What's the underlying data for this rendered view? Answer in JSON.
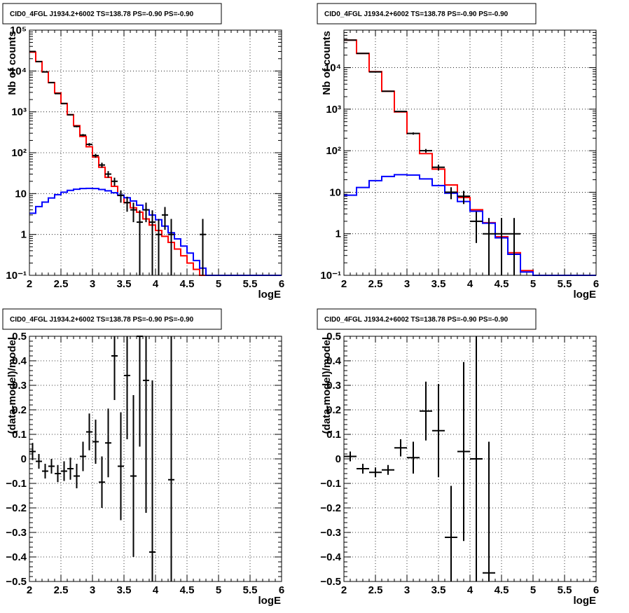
{
  "chart_data": [
    {
      "id": "p1",
      "type": "line",
      "title": "CID0_4FGL J1934.2+6002 TS=138.78 PS=-0.90 PS=-0.90",
      "xlabel": "logE",
      "ylabel": "Nb of counts",
      "xlim": [
        2,
        6
      ],
      "ylim": [
        0.1,
        100000
      ],
      "log_y": true,
      "grid": true,
      "xticks": [
        2,
        2.5,
        3,
        3.5,
        4,
        4.5,
        5,
        5.5,
        6
      ],
      "xtick_labels": [
        "2",
        "2.5",
        "3",
        "3.5",
        "4",
        "4.5",
        "5",
        "5.5",
        "6"
      ],
      "yticks": [
        0.1,
        1,
        10,
        100,
        1000,
        10000,
        100000
      ],
      "ytick_labels": [
        "10⁻¹",
        "1",
        "10",
        "10²",
        "10³",
        "10⁴",
        "10⁵"
      ],
      "bin_edges": [
        2.0,
        2.1,
        2.2,
        2.3,
        2.4,
        2.5,
        2.6,
        2.7,
        2.8,
        2.9,
        3.0,
        3.1,
        3.2,
        3.3,
        3.4,
        3.5,
        3.6,
        3.7,
        3.8,
        3.9,
        4.0,
        4.1,
        4.2,
        4.3,
        4.4,
        4.5,
        4.6,
        4.7,
        4.8,
        4.9,
        5.0,
        5.1,
        5.2,
        5.3,
        5.4,
        5.5,
        5.6,
        5.7,
        5.8,
        5.9,
        6.0
      ],
      "series": [
        {
          "color": "#ff0000",
          "values": [
            29000,
            17000,
            9500,
            5200,
            2900,
            1600,
            850,
            460,
            250,
            140,
            78,
            44,
            25,
            15,
            9,
            6,
            4.5,
            3.5,
            2.4,
            1.7,
            1.25,
            0.9,
            0.64,
            0.44,
            0.3,
            0.2,
            0.14,
            0.1,
            0.1,
            0.1,
            0.1,
            0.1,
            0.1,
            0.1,
            0.1,
            0.1,
            0.1,
            0.1,
            0.1,
            0.1
          ]
        },
        {
          "color": "#0000ff",
          "values": [
            3.3,
            4.8,
            6.2,
            7.8,
            9.4,
            10.8,
            12,
            12.8,
            13.3,
            13.4,
            13.3,
            12.6,
            11.7,
            10.5,
            9.2,
            7.9,
            6.6,
            5.2,
            4.0,
            3.0,
            2.3,
            1.6,
            1.1,
            0.78,
            0.52,
            0.35,
            0.23,
            0.15,
            0.1,
            0.1,
            0.1,
            0.1,
            0.1,
            0.1,
            0.1,
            0.1,
            0.1,
            0.1,
            0.1,
            0.1
          ]
        }
      ],
      "data_points": {
        "x": [
          2.05,
          2.15,
          2.25,
          2.35,
          2.45,
          2.55,
          2.65,
          2.75,
          2.85,
          2.95,
          3.05,
          3.15,
          3.25,
          3.35,
          3.45,
          3.55,
          3.65,
          3.75,
          3.85,
          3.95,
          4.05,
          4.15,
          4.25,
          4.75
        ],
        "y": [
          30000,
          17000,
          9500,
          5200,
          2800,
          1600,
          850,
          440,
          270,
          160,
          85,
          50,
          30,
          20,
          9,
          6,
          4,
          2,
          4,
          2,
          1,
          3,
          1,
          1
        ],
        "yerr_low": [
          175,
          130,
          100,
          72,
          53,
          40,
          29,
          21,
          16,
          12.5,
          9,
          7,
          5.5,
          4.5,
          3,
          2.4,
          2,
          1.9,
          2,
          1.9,
          0.99,
          1.7,
          0.99,
          0.99
        ],
        "yerr_high": [
          175,
          130,
          100,
          72,
          53,
          40,
          29,
          21,
          16,
          12.5,
          9,
          7,
          5.5,
          4.5,
          3,
          2.4,
          2,
          1.9,
          2,
          1.9,
          1.4,
          1.7,
          1.4,
          1.4
        ]
      }
    },
    {
      "id": "p2",
      "type": "line",
      "title": "CID0_4FGL J1934.2+6002 TS=138.78 PS=-0.90 PS=-0.90",
      "xlabel": "logE",
      "ylabel": "Nb of counts",
      "xlim": [
        2,
        6
      ],
      "ylim": [
        0.1,
        80000
      ],
      "log_y": true,
      "grid": true,
      "xticks": [
        2,
        2.5,
        3,
        3.5,
        4,
        4.5,
        5,
        5.5,
        6
      ],
      "xtick_labels": [
        "2",
        "2.5",
        "3",
        "3.5",
        "4",
        "4.5",
        "5",
        "5.5",
        "6"
      ],
      "yticks": [
        0.1,
        1,
        10,
        100,
        1000,
        10000
      ],
      "ytick_labels": [
        "10⁻¹",
        "1",
        "10",
        "10²",
        "10³",
        "10⁴"
      ],
      "bin_edges": [
        2.0,
        2.2,
        2.4,
        2.6,
        2.8,
        3.0,
        3.2,
        3.4,
        3.6,
        3.8,
        4.0,
        4.2,
        4.4,
        4.6,
        4.8,
        5.0,
        5.2,
        5.4,
        5.6,
        5.8,
        6.0
      ],
      "series": [
        {
          "color": "#ff0000",
          "values": [
            46000,
            22000,
            8000,
            2700,
            860,
            260,
            85,
            36,
            15,
            7.5,
            3.8,
            1.85,
            0.85,
            0.35,
            0.13,
            0.1,
            0.1,
            0.1,
            0.1,
            0.1
          ]
        },
        {
          "color": "#0000ff",
          "values": [
            8.5,
            13,
            19,
            24,
            26.5,
            26,
            21,
            14.5,
            9.5,
            6,
            3.5,
            1.8,
            0.8,
            0.32,
            0.12,
            0.1,
            0.1,
            0.1,
            0.1,
            0.1
          ]
        }
      ],
      "data_points": {
        "x": [
          2.1,
          2.3,
          2.5,
          2.7,
          2.9,
          3.1,
          3.3,
          3.5,
          3.7,
          3.9,
          4.1,
          4.3,
          4.5,
          4.7
        ],
        "y": [
          46000,
          22000,
          7900,
          2700,
          880,
          260,
          100,
          40,
          10,
          8,
          2,
          1,
          1,
          1
        ],
        "yerr_low": [
          214,
          148,
          89,
          52,
          30,
          16,
          10,
          6.3,
          3.2,
          2.8,
          1.4,
          0.99,
          0.99,
          0.99
        ],
        "yerr_high": [
          214,
          148,
          89,
          52,
          30,
          16,
          10,
          6.3,
          3.2,
          2.8,
          1.4,
          1.4,
          1.4,
          1.4
        ]
      }
    },
    {
      "id": "p3",
      "type": "scatter",
      "title": "CID0_4FGL J1934.2+6002 TS=138.78 PS=-0.90 PS=-0.90",
      "xlabel": "logE",
      "ylabel": "(data-model)/model",
      "xlim": [
        2,
        6
      ],
      "ylim": [
        -0.5,
        0.5
      ],
      "grid": true,
      "xticks": [
        2,
        2.5,
        3,
        3.5,
        4,
        4.5,
        5,
        5.5,
        6
      ],
      "xtick_labels": [
        "2",
        "2.5",
        "3",
        "3.5",
        "4",
        "4.5",
        "5",
        "5.5",
        "6"
      ],
      "yticks": [
        -0.5,
        -0.4,
        -0.3,
        -0.2,
        -0.1,
        0,
        0.1,
        0.2,
        0.3,
        0.4,
        0.5
      ],
      "ytick_labels": [
        "−0.5",
        "−0.4",
        "−0.3",
        "−0.2",
        "−0.1",
        "0",
        "0.1",
        "0.2",
        "0.3",
        "0.4",
        "0.5"
      ],
      "x": [
        2.05,
        2.15,
        2.25,
        2.35,
        2.45,
        2.55,
        2.65,
        2.75,
        2.85,
        2.95,
        3.05,
        3.15,
        3.25,
        3.35,
        3.45,
        3.55,
        3.65,
        3.75,
        3.85,
        3.95,
        4.25
      ],
      "y": [
        0.03,
        -0.01,
        -0.05,
        -0.03,
        -0.06,
        -0.05,
        -0.04,
        -0.07,
        0.01,
        0.11,
        0.07,
        -0.095,
        0.065,
        0.42,
        -0.03,
        0.34,
        -0.07,
        0.5,
        0.32,
        -0.38,
        -0.085
      ],
      "yerr": [
        0.035,
        0.03,
        0.03,
        0.03,
        0.035,
        0.04,
        0.045,
        0.05,
        0.06,
        0.075,
        0.09,
        0.105,
        0.14,
        0.18,
        0.22,
        0.26,
        0.33,
        0.45,
        0.54,
        0.7,
        0.95
      ],
      "xerr": 0.05
    },
    {
      "id": "p4",
      "type": "scatter",
      "title": "CID0_4FGL J1934.2+6002 TS=138.78 PS=-0.90 PS=-0.90",
      "xlabel": "logE",
      "ylabel": "(data-model)/model",
      "xlim": [
        2,
        6
      ],
      "ylim": [
        -0.5,
        0.5
      ],
      "grid": true,
      "xticks": [
        2,
        2.5,
        3,
        3.5,
        4,
        4.5,
        5,
        5.5,
        6
      ],
      "xtick_labels": [
        "2",
        "2.5",
        "3",
        "3.5",
        "4",
        "4.5",
        "5",
        "5.5",
        "6"
      ],
      "yticks": [
        -0.5,
        -0.4,
        -0.3,
        -0.2,
        -0.1,
        0,
        0.1,
        0.2,
        0.3,
        0.4,
        0.5
      ],
      "ytick_labels": [
        "−0.5",
        "−0.4",
        "−0.3",
        "−0.2",
        "−0.1",
        "0",
        "0.1",
        "0.2",
        "0.3",
        "0.4",
        "0.5"
      ],
      "x": [
        2.1,
        2.3,
        2.5,
        2.7,
        2.9,
        3.1,
        3.3,
        3.5,
        3.7,
        3.9,
        4.1,
        4.3
      ],
      "y": [
        0.01,
        -0.04,
        -0.055,
        -0.045,
        0.045,
        0.005,
        0.195,
        0.115,
        -0.32,
        0.03,
        0.0,
        -0.465
      ],
      "yerr": [
        0.02,
        0.02,
        0.02,
        0.02,
        0.035,
        0.065,
        0.12,
        0.19,
        0.21,
        0.365,
        0.6,
        0.535
      ],
      "xerr": 0.1
    }
  ]
}
